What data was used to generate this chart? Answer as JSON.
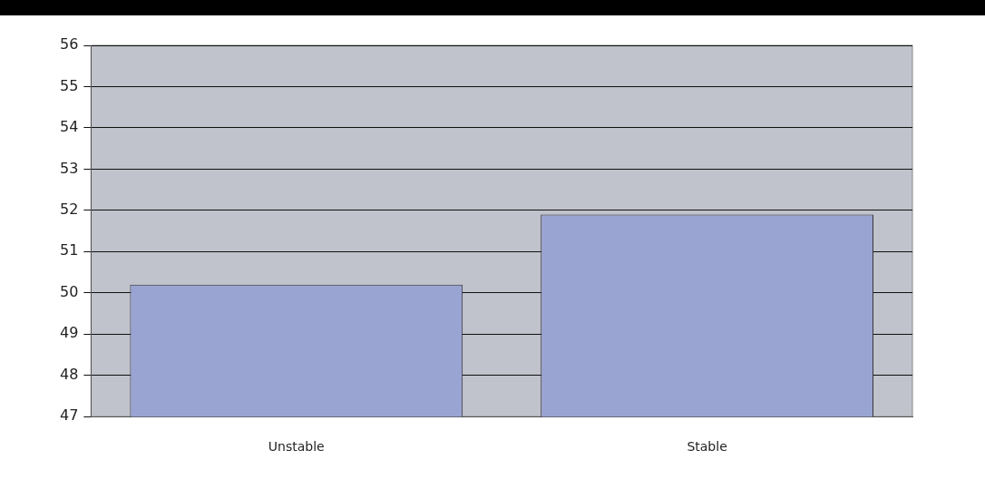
{
  "chart_data": {
    "type": "bar",
    "categories": [
      "Unstable",
      "Stable"
    ],
    "values": [
      50.2,
      51.9
    ],
    "color": "#99a4d3",
    "ylim": [
      47,
      56
    ],
    "yticks": [
      47,
      48,
      49,
      50,
      51,
      52,
      53,
      54,
      55,
      56
    ],
    "grid": "y",
    "legend": false
  }
}
